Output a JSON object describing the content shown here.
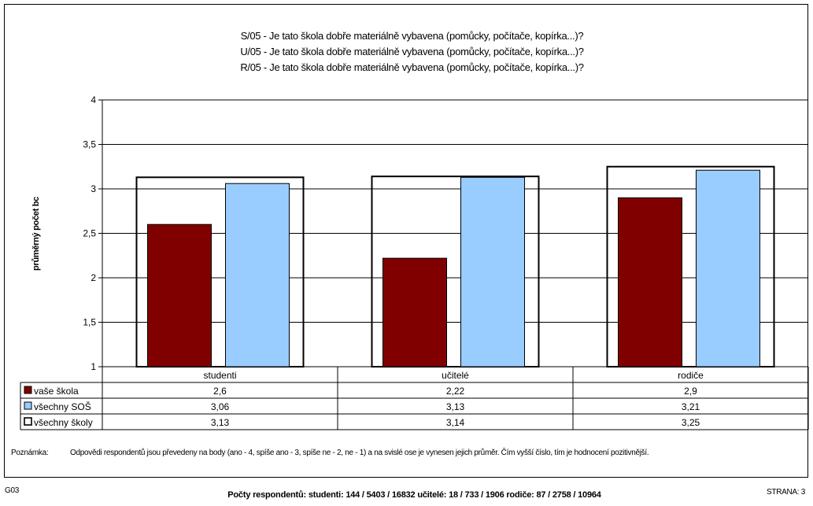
{
  "titles": [
    "S/05 - Je tato škola dobře materiálně vybavena (pomůcky, počítače, kopírka...)?",
    "U/05 - Je tato škola dobře materiálně vybavena (pomůcky, počítače, kopírka...)?",
    "R/05 - Je tato škola dobře materiálně vybavena (pomůcky, počítače, kopírka...)?"
  ],
  "chart_data": {
    "type": "bar",
    "ylabel": "průměrný počet bc",
    "ylim": [
      1,
      4
    ],
    "yticks": [
      "1",
      "1,5",
      "2",
      "2,5",
      "3",
      "3,5",
      "4"
    ],
    "ytick_values": [
      1,
      1.5,
      2,
      2.5,
      3,
      3.5,
      4
    ],
    "grid": true,
    "categories": [
      "studenti",
      "učitelé",
      "rodiče"
    ],
    "series": [
      {
        "name": "vaše škola",
        "values": [
          2.6,
          2.22,
          2.9
        ],
        "labels": [
          "2,6",
          "2,22",
          "2,9"
        ],
        "color": "#800000",
        "style": "bar"
      },
      {
        "name": "všechny SOŠ",
        "values": [
          3.06,
          3.13,
          3.21
        ],
        "labels": [
          "3,06",
          "3,13",
          "3,21"
        ],
        "color": "#99CCFF",
        "style": "bar"
      },
      {
        "name": "všechny školy",
        "values": [
          3.13,
          3.14,
          3.25
        ],
        "labels": [
          "3,13",
          "3,14",
          "3,25"
        ],
        "color": "#FFFFFF",
        "style": "outline"
      }
    ]
  },
  "note": {
    "label": "Poznámka:",
    "text": "Odpovědi respondentů jsou převedeny na body (ano - 4, spíše ano - 3, spíše ne - 2, ne - 1) a na svislé ose je vynesen jejich průměr. Čím vyšší číslo, tím je hodnocení pozitivnější."
  },
  "footer": {
    "code": "G03",
    "respondents": "Počty respondentů: studenti: 144 / 5403 / 16832 učitelé: 18 / 733 / 1906 rodiče: 87 / 2758 / 10964",
    "page": "STRANA: 3"
  }
}
